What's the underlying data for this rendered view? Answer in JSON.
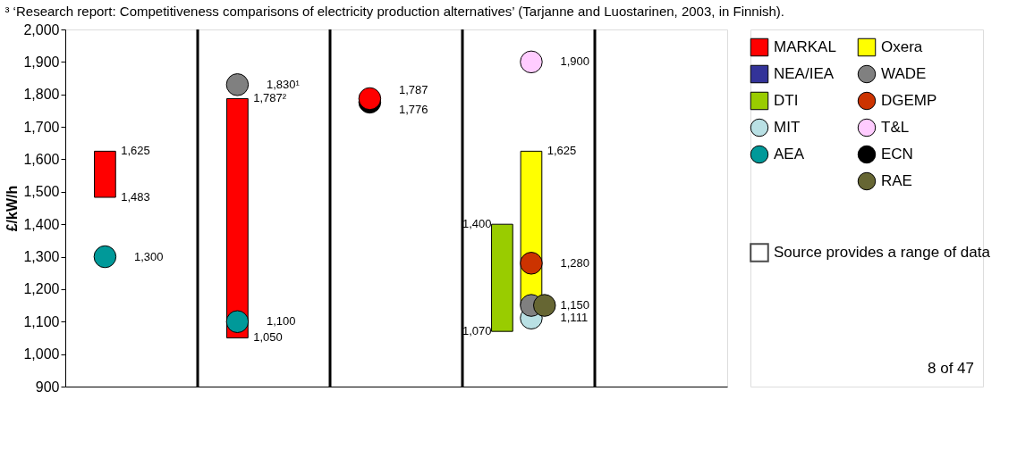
{
  "chart_data": {
    "type": "bar",
    "ylabel": "£/kW/h",
    "categories": [
      null,
      null,
      null,
      null,
      null
    ],
    "ylim": [
      900,
      2000
    ],
    "yticks": [
      {
        "value": 900,
        "label": "900"
      },
      {
        "value": 1000,
        "label": "1,000"
      },
      {
        "value": 1100,
        "label": "1,100"
      },
      {
        "value": 1200,
        "label": "1,200"
      },
      {
        "value": 1300,
        "label": "1,300"
      },
      {
        "value": 1400,
        "label": "1,400"
      },
      {
        "value": 1500,
        "label": "1,500"
      },
      {
        "value": 1600,
        "label": "1,600"
      },
      {
        "value": 1700,
        "label": "1,700"
      },
      {
        "value": 1800,
        "label": "1,800"
      },
      {
        "value": 1900,
        "label": "1,900"
      },
      {
        "value": 2000,
        "label": "2,000"
      }
    ],
    "grid": "x",
    "legend": "right",
    "marker": "circle",
    "series": [
      {
        "name": "MARKAL",
        "color": "#ff0000",
        "values": [
          142,
          737,
          null,
          null,
          null
        ],
        "base": [
          1483,
          1050,
          null,
          null,
          null
        ]
      },
      {
        "name": "NEA/IEA",
        "color": "#333399",
        "values": [
          null,
          null,
          null,
          null,
          null
        ],
        "base": [
          null,
          null,
          null,
          null,
          null
        ]
      },
      {
        "name": "DTI",
        "color": "#99cc00",
        "values": [
          null,
          null,
          null,
          330,
          null
        ],
        "base": [
          null,
          null,
          null,
          1070,
          null
        ]
      },
      {
        "name": "MIT",
        "type": "scatter",
        "color": "#b9e0e4",
        "values": [
          null,
          null,
          null,
          1111,
          null
        ],
        "value_labels": [
          null,
          null,
          null,
          "1,111",
          null
        ]
      },
      {
        "name": "AEA",
        "type": "scatter",
        "color": "#009999",
        "values": [
          1300,
          1100,
          null,
          null,
          null
        ],
        "value_labels": [
          "1,300",
          "1,100",
          null,
          null,
          null
        ]
      },
      {
        "name": "Oxera",
        "color": "#ffff00",
        "values": [
          null,
          null,
          null,
          475,
          null
        ],
        "base": [
          null,
          null,
          null,
          1150,
          null
        ]
      },
      {
        "name": "WADE",
        "type": "scatter",
        "color": "#808080",
        "values": [
          null,
          1830,
          null,
          1150,
          null
        ],
        "value_labels": [
          null,
          "1,830¹",
          null,
          null,
          null
        ]
      },
      {
        "name": "DGEMP",
        "type": "scatter",
        "color": "#cc3300",
        "values": [
          null,
          null,
          null,
          1280,
          null
        ],
        "value_labels": [
          null,
          null,
          null,
          "1,280",
          null
        ]
      },
      {
        "name": "T&L",
        "type": "scatter",
        "color": "#ffccff",
        "values": [
          null,
          null,
          null,
          1900,
          null
        ],
        "value_labels": [
          null,
          null,
          null,
          "1,900",
          null
        ]
      },
      {
        "name": "ECN",
        "type": "scatter",
        "color": "#000000",
        "values": [
          null,
          null,
          1776,
          null,
          null
        ],
        "value_labels": [
          null,
          null,
          "1,776",
          null,
          null
        ]
      },
      {
        "name": "RAE",
        "type": "scatter",
        "color": "#666633",
        "values": [
          null,
          null,
          null,
          1150,
          null
        ],
        "value_labels": [
          null,
          null,
          null,
          "1,150",
          null
        ]
      },
      {
        "type": "scatter",
        "color": "#ff0000",
        "values": [
          null,
          null,
          1787,
          null,
          null
        ],
        "value_labels": [
          null,
          null,
          "1,787",
          null,
          null
        ]
      }
    ],
    "annotations": [
      "³ ‘Research report: Competitiveness comparisons of electricity production alternatives’ (Tarjanne and Luostarinen, 2003, in Finnish).",
      "Source provides a range of data",
      "8 of 47",
      "1,625",
      "1,483",
      "1,787²",
      "1,050",
      "1,400",
      "1,070",
      "1,625"
    ]
  }
}
